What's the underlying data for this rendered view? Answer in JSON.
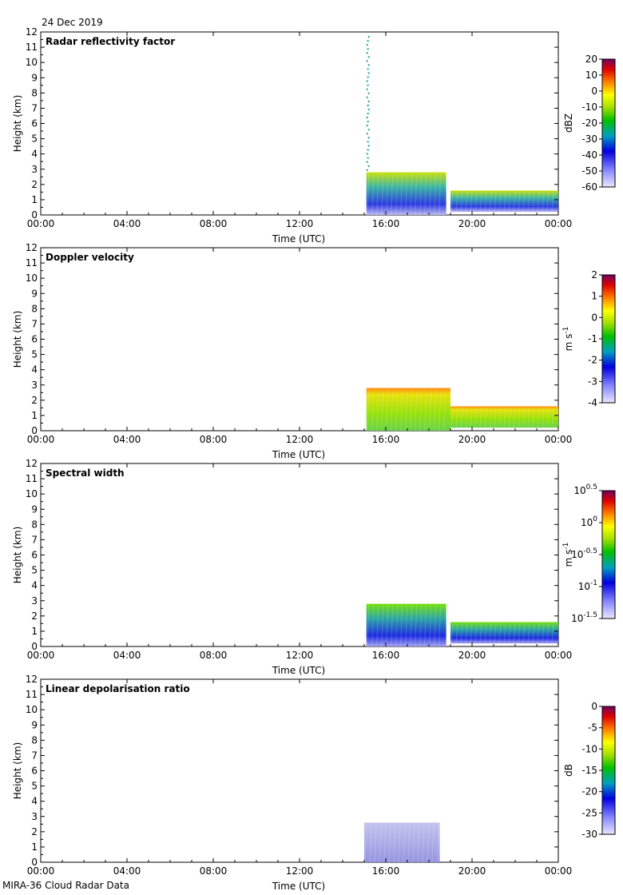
{
  "figure": {
    "date": "24 Dec 2019",
    "footer": "MIRA-36 Cloud Radar Data"
  },
  "chart_data": [
    {
      "type": "heatmap",
      "title": "Radar reflectivity factor",
      "xlabel": "Time (UTC)",
      "ylabel": "Height (km)",
      "x_ticks": [
        "00:00",
        "04:00",
        "08:00",
        "12:00",
        "16:00",
        "20:00",
        "00:00"
      ],
      "xlim_hours": [
        0,
        24
      ],
      "ylim": [
        0,
        12
      ],
      "y_ticks": [
        0,
        1,
        2,
        3,
        4,
        5,
        6,
        7,
        8,
        9,
        10,
        11,
        12
      ],
      "colorbar": {
        "label": "dBZ",
        "ticks": [
          "20",
          "10",
          "0",
          "-10",
          "-20",
          "-30",
          "-40",
          "-50",
          "-60"
        ],
        "range": [
          -60,
          20
        ]
      },
      "echo_regions": [
        {
          "t_start": 15.1,
          "t_end": 18.8,
          "h_bottom": 0.0,
          "h_top": 2.8,
          "value": "-30 to -50"
        },
        {
          "t_start": 19.0,
          "t_end": 24.0,
          "h_bottom": 0.2,
          "h_top": 1.6,
          "value": "-30 to -50"
        },
        {
          "t_start": 15.1,
          "t_end": 15.3,
          "h_bottom": 3.0,
          "h_top": 12.0,
          "value": "sparse"
        }
      ]
    },
    {
      "type": "heatmap",
      "title": "Doppler velocity",
      "xlabel": "Time (UTC)",
      "ylabel": "Height (km)",
      "x_ticks": [
        "00:00",
        "04:00",
        "08:00",
        "12:00",
        "16:00",
        "20:00",
        "00:00"
      ],
      "xlim_hours": [
        0,
        24
      ],
      "ylim": [
        0,
        12
      ],
      "y_ticks": [
        0,
        1,
        2,
        3,
        4,
        5,
        6,
        7,
        8,
        9,
        10,
        11,
        12
      ],
      "colorbar": {
        "label": "m s-1",
        "ticks": [
          "2",
          "1",
          "0",
          "-1",
          "-2",
          "-3",
          "-4"
        ],
        "range": [
          -4,
          2
        ]
      },
      "echo_regions": [
        {
          "t_start": 15.1,
          "t_end": 19.0,
          "h_bottom": 0.0,
          "h_top": 2.8,
          "value": "-1 to 0"
        },
        {
          "t_start": 19.0,
          "t_end": 24.0,
          "h_bottom": 0.2,
          "h_top": 1.6,
          "value": "-1 to 0"
        }
      ]
    },
    {
      "type": "heatmap",
      "title": "Spectral width",
      "xlabel": "Time (UTC)",
      "ylabel": "Height (km)",
      "x_ticks": [
        "00:00",
        "04:00",
        "08:00",
        "12:00",
        "16:00",
        "20:00",
        "00:00"
      ],
      "xlim_hours": [
        0,
        24
      ],
      "ylim": [
        0,
        12
      ],
      "y_ticks": [
        0,
        1,
        2,
        3,
        4,
        5,
        6,
        7,
        8,
        9,
        10,
        11,
        12
      ],
      "colorbar": {
        "label": "m s-1",
        "ticks": [
          "10^0.5",
          "10^0",
          "10^-0.5",
          "10^-1",
          "10^-1.5"
        ],
        "range": [
          -1.5,
          0.5
        ],
        "log": true
      },
      "echo_regions": [
        {
          "t_start": 15.1,
          "t_end": 18.8,
          "h_bottom": 0.0,
          "h_top": 2.8,
          "value": "10^-1"
        },
        {
          "t_start": 19.0,
          "t_end": 24.0,
          "h_bottom": 0.2,
          "h_top": 1.6,
          "value": "10^-1"
        }
      ]
    },
    {
      "type": "heatmap",
      "title": "Linear depolarisation ratio",
      "xlabel": "Time (UTC)",
      "ylabel": "Height (km)",
      "x_ticks": [
        "00:00",
        "04:00",
        "08:00",
        "12:00",
        "16:00",
        "20:00",
        "00:00"
      ],
      "xlim_hours": [
        0,
        24
      ],
      "ylim": [
        0,
        12
      ],
      "y_ticks": [
        0,
        1,
        2,
        3,
        4,
        5,
        6,
        7,
        8,
        9,
        10,
        11,
        12
      ],
      "colorbar": {
        "label": "dB",
        "ticks": [
          "0",
          "-5",
          "-10",
          "-15",
          "-20",
          "-25",
          "-30"
        ],
        "range": [
          -30,
          0
        ]
      },
      "echo_regions": [
        {
          "t_start": 15.0,
          "t_end": 18.5,
          "h_bottom": 0.0,
          "h_top": 2.6,
          "value": "-30"
        }
      ]
    }
  ]
}
